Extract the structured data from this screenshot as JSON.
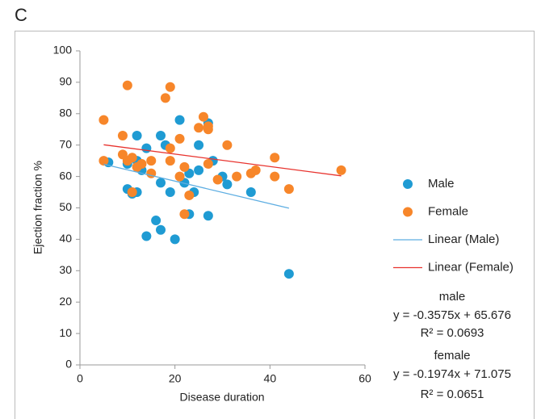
{
  "chart_data": {
    "type": "scatter",
    "panel_label": "C",
    "x_label": "Disease duration",
    "y_label": "Ejection fraction %",
    "xlim": [
      0,
      60
    ],
    "xticks": [
      0,
      20,
      40,
      60
    ],
    "ylim": [
      0,
      100
    ],
    "yticks": [
      0,
      10,
      20,
      30,
      40,
      50,
      60,
      70,
      80,
      90,
      100
    ],
    "series": [
      {
        "name": "Male",
        "type": "scatter",
        "color": "#1f9bd3",
        "x": [
          6,
          10,
          10,
          11,
          12,
          12,
          12,
          13,
          14,
          14,
          16,
          17,
          17,
          17,
          18,
          19,
          20,
          21,
          22,
          23,
          23,
          24,
          25,
          25,
          27,
          27,
          28,
          30,
          31,
          36,
          44
        ],
        "values": [
          64.5,
          64,
          56,
          54.5,
          73,
          55,
          65,
          62,
          69,
          41,
          46,
          73,
          58,
          43,
          70,
          55,
          40,
          78,
          58,
          61,
          48,
          55,
          62,
          70,
          77,
          47.5,
          65,
          60,
          57.5,
          55,
          29
        ]
      },
      {
        "name": "Female",
        "type": "scatter",
        "color": "#f7862a",
        "x": [
          5,
          5,
          9,
          9,
          10,
          10,
          11,
          11,
          12,
          13,
          15,
          15,
          18,
          19,
          19,
          19,
          21,
          21,
          22,
          22,
          23,
          25,
          26,
          27,
          27,
          27,
          29,
          31,
          33,
          36,
          37,
          41,
          41,
          44,
          55
        ],
        "values": [
          78,
          65,
          73,
          67,
          89,
          65,
          66,
          55,
          63,
          64,
          65,
          61,
          85,
          88.5,
          69,
          65,
          72,
          60,
          63,
          48,
          54,
          75.5,
          79,
          76,
          75,
          64,
          59,
          70,
          60,
          61,
          62,
          66,
          60,
          56,
          62
        ]
      },
      {
        "name": "Linear (Male)",
        "type": "line",
        "color": "#5eaee2",
        "x": [
          5,
          44
        ],
        "values": [
          63.9,
          49.9
        ]
      },
      {
        "name": "Linear (Female)",
        "type": "line",
        "color": "#e8332e",
        "x": [
          5,
          55
        ],
        "values": [
          70.1,
          60.2
        ]
      }
    ],
    "annotations": [
      "male",
      "y = -0.3575x + 65.676",
      "R² = 0.0693",
      "female",
      "y = -0.1974x + 71.075",
      "R² = 0.0651"
    ]
  }
}
